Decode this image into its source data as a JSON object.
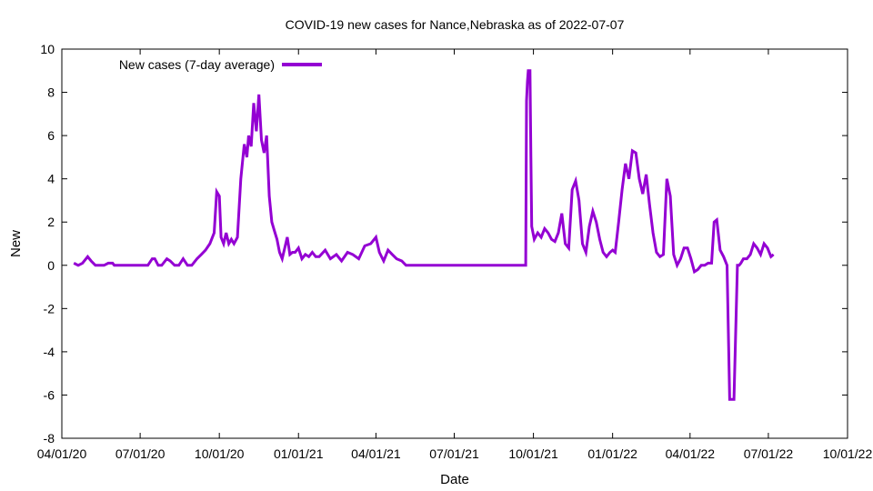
{
  "chart_data": {
    "type": "line",
    "title": "COVID-19 new cases for Nance,Nebraska as of 2022-07-07",
    "xlabel": "Date",
    "ylabel": "New",
    "ylim": [
      -8,
      10
    ],
    "yticks": [
      -8,
      -6,
      -4,
      -2,
      0,
      2,
      4,
      6,
      8,
      10
    ],
    "xlim": [
      "2020-04-01",
      "2022-10-01"
    ],
    "xticks": [
      "2020-04-01",
      "2020-07-01",
      "2020-10-01",
      "2021-01-01",
      "2021-04-01",
      "2021-07-01",
      "2021-10-01",
      "2022-01-01",
      "2022-04-01",
      "2022-07-01",
      "2022-10-01"
    ],
    "xtick_labels": [
      "04/01/20",
      "07/01/20",
      "10/01/20",
      "01/01/21",
      "04/01/21",
      "07/01/21",
      "10/01/21",
      "01/01/22",
      "04/01/22",
      "07/01/22",
      "10/01/22"
    ],
    "grid": false,
    "legend_position": "top-left",
    "series": [
      {
        "name": "New cases (7-day average)",
        "color": "#9400d3",
        "x": [
          "2020-04-15",
          "2020-04-20",
          "2020-04-25",
          "2020-05-01",
          "2020-05-05",
          "2020-05-10",
          "2020-05-15",
          "2020-05-20",
          "2020-05-25",
          "2020-05-30",
          "2020-06-01",
          "2020-06-10",
          "2020-06-20",
          "2020-06-30",
          "2020-07-10",
          "2020-07-15",
          "2020-07-18",
          "2020-07-22",
          "2020-07-26",
          "2020-08-01",
          "2020-08-05",
          "2020-08-10",
          "2020-08-15",
          "2020-08-20",
          "2020-08-25",
          "2020-08-30",
          "2020-09-05",
          "2020-09-10",
          "2020-09-15",
          "2020-09-20",
          "2020-09-25",
          "2020-09-28",
          "2020-10-01",
          "2020-10-03",
          "2020-10-06",
          "2020-10-09",
          "2020-10-12",
          "2020-10-15",
          "2020-10-18",
          "2020-10-22",
          "2020-10-26",
          "2020-10-30",
          "2020-11-02",
          "2020-11-04",
          "2020-11-07",
          "2020-11-10",
          "2020-11-13",
          "2020-11-16",
          "2020-11-19",
          "2020-11-22",
          "2020-11-25",
          "2020-11-28",
          "2020-12-01",
          "2020-12-04",
          "2020-12-07",
          "2020-12-10",
          "2020-12-13",
          "2020-12-16",
          "2020-12-19",
          "2020-12-22",
          "2020-12-25",
          "2020-12-28",
          "2021-01-01",
          "2021-01-05",
          "2021-01-09",
          "2021-01-13",
          "2021-01-17",
          "2021-01-21",
          "2021-01-25",
          "2021-02-01",
          "2021-02-07",
          "2021-02-14",
          "2021-02-20",
          "2021-02-27",
          "2021-03-05",
          "2021-03-12",
          "2021-03-19",
          "2021-03-26",
          "2021-04-01",
          "2021-04-05",
          "2021-04-10",
          "2021-04-15",
          "2021-04-20",
          "2021-04-25",
          "2021-05-01",
          "2021-05-06",
          "2021-05-12",
          "2021-05-18",
          "2021-05-24",
          "2021-05-28",
          "2021-06-01",
          "2021-06-15",
          "2021-07-01",
          "2021-07-15",
          "2021-08-01",
          "2021-08-15",
          "2021-09-01",
          "2021-09-15",
          "2021-09-22",
          "2021-09-23",
          "2021-09-24",
          "2021-09-25",
          "2021-09-27",
          "2021-09-28",
          "2021-09-29",
          "2021-10-02",
          "2021-10-06",
          "2021-10-10",
          "2021-10-14",
          "2021-10-18",
          "2021-10-22",
          "2021-10-26",
          "2021-10-30",
          "2021-11-03",
          "2021-11-07",
          "2021-11-11",
          "2021-11-15",
          "2021-11-19",
          "2021-11-23",
          "2021-11-27",
          "2021-12-01",
          "2021-12-05",
          "2021-12-09",
          "2021-12-13",
          "2021-12-17",
          "2021-12-21",
          "2021-12-25",
          "2021-12-29",
          "2022-01-01",
          "2022-01-04",
          "2022-01-08",
          "2022-01-12",
          "2022-01-16",
          "2022-01-20",
          "2022-01-24",
          "2022-01-28",
          "2022-02-01",
          "2022-02-05",
          "2022-02-09",
          "2022-02-13",
          "2022-02-17",
          "2022-02-21",
          "2022-02-25",
          "2022-03-01",
          "2022-03-05",
          "2022-03-09",
          "2022-03-13",
          "2022-03-17",
          "2022-03-21",
          "2022-03-25",
          "2022-03-29",
          "2022-04-02",
          "2022-04-06",
          "2022-04-10",
          "2022-04-14",
          "2022-04-18",
          "2022-04-22",
          "2022-04-26",
          "2022-04-29",
          "2022-05-02",
          "2022-05-06",
          "2022-05-10",
          "2022-05-14",
          "2022-05-17",
          "2022-05-18",
          "2022-05-22",
          "2022-05-26",
          "2022-05-28",
          "2022-05-30",
          "2022-06-02",
          "2022-06-06",
          "2022-06-10",
          "2022-06-14",
          "2022-06-18",
          "2022-06-22",
          "2022-06-26",
          "2022-06-30",
          "2022-07-04",
          "2022-07-07"
        ],
        "y": [
          0.1,
          0.0,
          0.1,
          0.4,
          0.2,
          0.0,
          0.0,
          0.0,
          0.1,
          0.1,
          0.0,
          0.0,
          0.0,
          0.0,
          0.0,
          0.3,
          0.3,
          0.0,
          0.0,
          0.3,
          0.2,
          0.0,
          0.0,
          0.3,
          0.0,
          0.0,
          0.3,
          0.5,
          0.7,
          1.0,
          1.5,
          3.4,
          3.2,
          1.3,
          1.0,
          1.5,
          1.0,
          1.2,
          1.0,
          1.3,
          4.0,
          5.6,
          5.0,
          6.0,
          5.5,
          7.5,
          6.2,
          7.9,
          5.8,
          5.2,
          6.0,
          3.2,
          2.0,
          1.6,
          1.2,
          0.6,
          0.3,
          0.8,
          1.3,
          0.5,
          0.6,
          0.6,
          0.8,
          0.3,
          0.5,
          0.4,
          0.6,
          0.4,
          0.4,
          0.7,
          0.3,
          0.5,
          0.2,
          0.6,
          0.5,
          0.3,
          0.9,
          1.0,
          1.3,
          0.6,
          0.2,
          0.7,
          0.5,
          0.3,
          0.2,
          0.0,
          0.0,
          0.0,
          0.0,
          0.0,
          0.0,
          0.0,
          0.0,
          0.0,
          0.0,
          0.0,
          0.0,
          0.0,
          0.0,
          7.6,
          8.5,
          9.0,
          9.0,
          5.0,
          1.8,
          1.2,
          1.5,
          1.3,
          1.7,
          1.5,
          1.2,
          1.1,
          1.5,
          2.4,
          1.0,
          0.8,
          3.5,
          3.9,
          3.0,
          1.0,
          0.6,
          1.8,
          2.5,
          2.0,
          1.2,
          0.6,
          0.4,
          0.6,
          0.7,
          0.6,
          2.0,
          3.5,
          4.7,
          4.0,
          5.3,
          5.2,
          4.0,
          3.3,
          4.2,
          2.8,
          1.5,
          0.6,
          0.4,
          0.5,
          4.0,
          3.2,
          0.5,
          0.0,
          0.3,
          0.8,
          0.8,
          0.3,
          -0.3,
          -0.2,
          0.0,
          0.0,
          0.1,
          0.1,
          2.0,
          2.1,
          0.7,
          0.4,
          0.0,
          -6.2,
          -6.2,
          -6.2,
          0.0,
          0.0,
          0.1,
          0.3,
          0.3,
          0.5,
          1.0,
          0.8,
          0.5,
          1.0,
          0.8,
          0.4,
          0.5
        ]
      }
    ]
  }
}
